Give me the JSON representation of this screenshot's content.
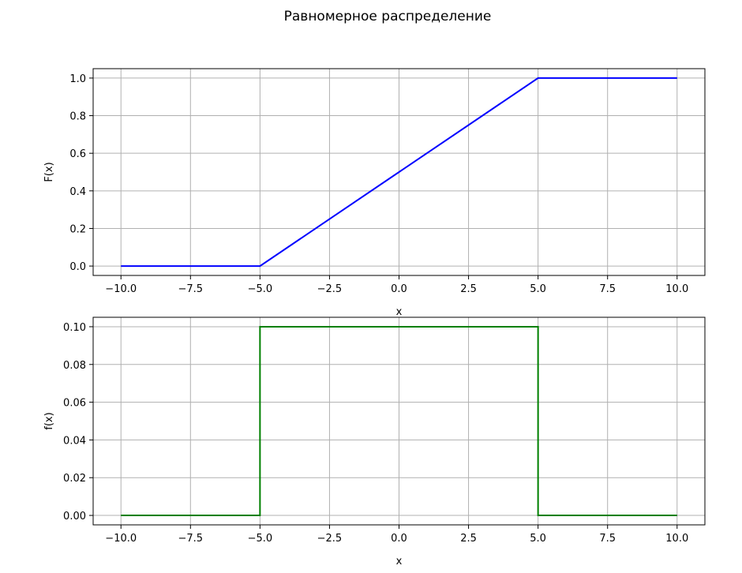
{
  "title": "Равномерное распределение",
  "chart_data": [
    {
      "type": "line",
      "title": "",
      "xlabel": "x",
      "ylabel": "F(x)",
      "xlim": [
        -11,
        11
      ],
      "ylim": [
        -0.05,
        1.05
      ],
      "xticks": [
        -10.0,
        -7.5,
        -5.0,
        -2.5,
        0.0,
        2.5,
        5.0,
        7.5,
        10.0
      ],
      "xtick_labels": [
        "−10.0",
        "−7.5",
        "−5.0",
        "−2.5",
        "0.0",
        "2.5",
        "5.0",
        "7.5",
        "10.0"
      ],
      "yticks": [
        0.0,
        0.2,
        0.4,
        0.6,
        0.8,
        1.0
      ],
      "ytick_labels": [
        "0.0",
        "0.2",
        "0.4",
        "0.6",
        "0.8",
        "1.0"
      ],
      "grid": true,
      "series": [
        {
          "color": "#0000ff",
          "x": [
            -10,
            -5,
            5,
            10
          ],
          "y": [
            0,
            0,
            1,
            1
          ]
        }
      ]
    },
    {
      "type": "line",
      "title": "",
      "xlabel": "x",
      "ylabel": "f(x)",
      "xlim": [
        -11,
        11
      ],
      "ylim": [
        -0.005,
        0.105
      ],
      "xticks": [
        -10.0,
        -7.5,
        -5.0,
        -2.5,
        0.0,
        2.5,
        5.0,
        7.5,
        10.0
      ],
      "xtick_labels": [
        "−10.0",
        "−7.5",
        "−5.0",
        "−2.5",
        "0.0",
        "2.5",
        "5.0",
        "7.5",
        "10.0"
      ],
      "yticks": [
        0.0,
        0.02,
        0.04,
        0.06,
        0.08,
        0.1
      ],
      "ytick_labels": [
        "0.00",
        "0.02",
        "0.04",
        "0.06",
        "0.08",
        "0.10"
      ],
      "grid": true,
      "series": [
        {
          "color": "#008000",
          "x": [
            -10,
            -5,
            -5,
            5,
            5,
            10
          ],
          "y": [
            0,
            0,
            0.1,
            0.1,
            0,
            0
          ]
        }
      ]
    }
  ]
}
